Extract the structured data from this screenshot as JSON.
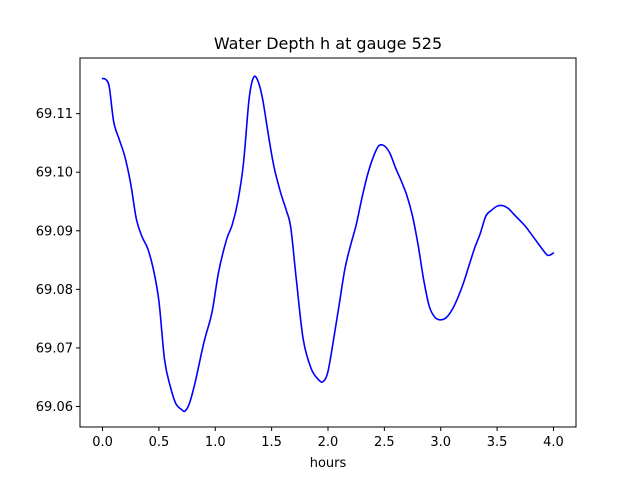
{
  "chart_data": {
    "type": "line",
    "title": "Water Depth h at gauge 525",
    "xlabel": "hours",
    "ylabel": "",
    "xlim": [
      -0.2,
      4.2
    ],
    "ylim": [
      69.0565,
      69.1195
    ],
    "xticks": [
      0.0,
      0.5,
      1.0,
      1.5,
      2.0,
      2.5,
      3.0,
      3.5,
      4.0
    ],
    "xtick_labels": [
      "0.0",
      "0.5",
      "1.0",
      "1.5",
      "2.0",
      "2.5",
      "3.0",
      "3.5",
      "4.0"
    ],
    "yticks": [
      69.06,
      69.07,
      69.08,
      69.09,
      69.1,
      69.11
    ],
    "ytick_labels": [
      "69.06",
      "69.07",
      "69.08",
      "69.09",
      "69.10",
      "69.11"
    ],
    "grid": false,
    "series": [
      {
        "name": "",
        "color": "#0000ff",
        "x": [
          0.0,
          0.03,
          0.06,
          0.1,
          0.15,
          0.2,
          0.25,
          0.3,
          0.35,
          0.4,
          0.45,
          0.5,
          0.55,
          0.6,
          0.65,
          0.7,
          0.73,
          0.77,
          0.82,
          0.9,
          0.97,
          1.03,
          1.1,
          1.15,
          1.2,
          1.25,
          1.3,
          1.34,
          1.38,
          1.42,
          1.47,
          1.52,
          1.58,
          1.63,
          1.67,
          1.72,
          1.78,
          1.85,
          1.92,
          1.96,
          2.0,
          2.05,
          2.1,
          2.15,
          2.2,
          2.25,
          2.3,
          2.35,
          2.4,
          2.45,
          2.5,
          2.55,
          2.6,
          2.65,
          2.7,
          2.75,
          2.8,
          2.85,
          2.9,
          2.95,
          3.0,
          3.05,
          3.1,
          3.15,
          3.2,
          3.25,
          3.3,
          3.35,
          3.4,
          3.45,
          3.5,
          3.55,
          3.6,
          3.65,
          3.7,
          3.75,
          3.8,
          3.85,
          3.9,
          3.95,
          4.0
        ],
        "y": [
          69.116,
          69.1158,
          69.1145,
          69.1085,
          69.1055,
          69.1025,
          69.098,
          69.092,
          69.089,
          69.087,
          69.0835,
          69.078,
          69.068,
          69.0635,
          69.0605,
          69.0595,
          69.0592,
          69.0605,
          69.064,
          69.071,
          69.076,
          69.083,
          69.0885,
          69.091,
          69.095,
          69.1015,
          69.1125,
          69.1162,
          69.1155,
          69.1125,
          69.1065,
          69.101,
          69.0965,
          69.0935,
          69.0905,
          69.0815,
          69.0715,
          69.0665,
          69.0645,
          69.0643,
          69.066,
          69.0715,
          69.0775,
          69.0835,
          69.0875,
          69.091,
          69.0955,
          69.0995,
          69.1025,
          69.1045,
          69.1045,
          69.1032,
          69.1007,
          69.0985,
          69.096,
          69.0925,
          69.0875,
          69.0815,
          69.077,
          69.0752,
          69.0748,
          69.0752,
          69.0765,
          69.0785,
          69.081,
          69.084,
          69.087,
          69.0895,
          69.0925,
          69.0935,
          69.0942,
          69.0943,
          69.0938,
          69.0928,
          69.0918,
          69.0908,
          69.0895,
          69.0882,
          69.0869,
          69.0858,
          69.0862
        ]
      }
    ]
  }
}
